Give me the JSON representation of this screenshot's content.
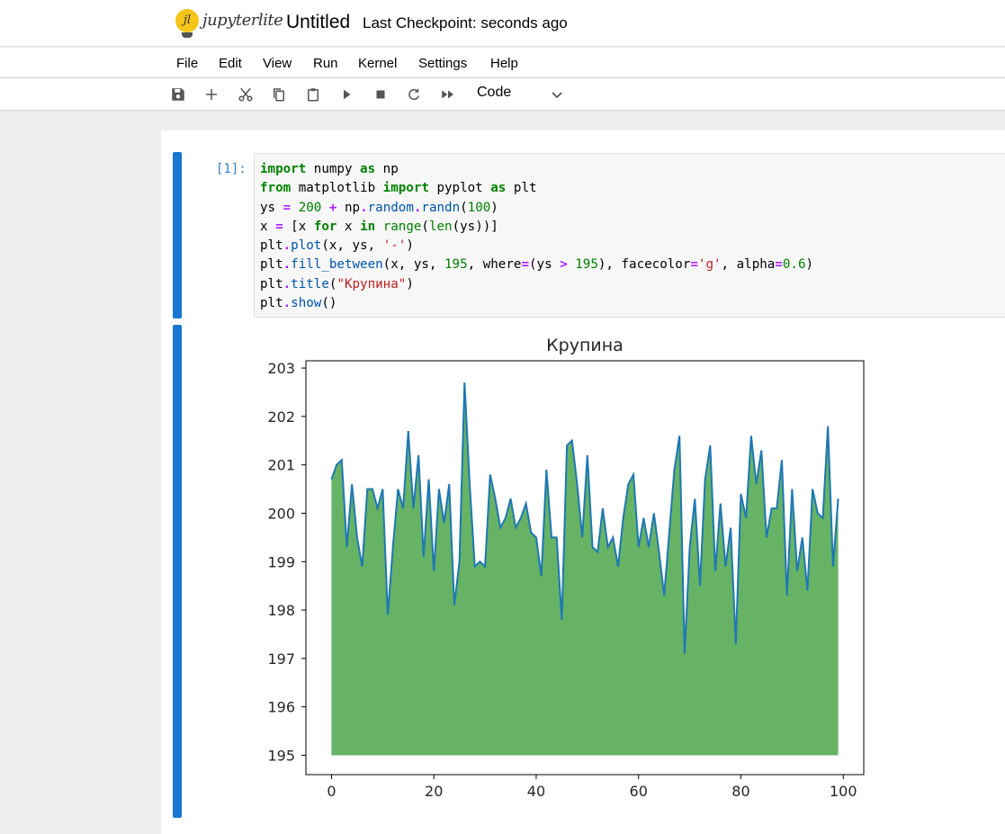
{
  "header": {
    "logo_text": "jupyterlite",
    "logo_mark": "jl",
    "title": "Untitled",
    "checkpoint": "Last Checkpoint: seconds ago"
  },
  "menu": [
    "File",
    "Edit",
    "View",
    "Run",
    "Kernel",
    "Settings",
    "Help"
  ],
  "toolbar": {
    "buttons": [
      "save-icon",
      "add-icon",
      "cut-icon",
      "copy-icon",
      "paste-icon",
      "run-icon",
      "stop-icon",
      "restart-icon",
      "run-all-icon"
    ],
    "cell_type": "Code"
  },
  "cell": {
    "prompt": "[1]:",
    "code_lines": [
      "import numpy as np",
      "from matplotlib import pyplot as plt",
      "ys = 200 + np.random.randn(100)",
      "x = [x for x in range(len(ys))]",
      "plt.plot(x, ys, '-')",
      "plt.fill_between(x, ys, 195, where=(ys > 195), facecolor='g', alpha=0.6)",
      "plt.title(\"Крупина\")",
      "plt.show()"
    ]
  },
  "chart_data": {
    "type": "area",
    "title": "Крупина",
    "xlabel": "",
    "ylabel": "",
    "xlim": [
      -5,
      104
    ],
    "ylim": [
      194.6,
      203.15
    ],
    "xticks": [
      0,
      20,
      40,
      60,
      80,
      100
    ],
    "yticks": [
      195,
      196,
      197,
      198,
      199,
      200,
      201,
      202,
      203
    ],
    "baseline": 195,
    "line_color": "#1f77b4",
    "fill_color": "#008000",
    "fill_alpha": 0.6,
    "grid": false,
    "x": [
      0,
      1,
      2,
      3,
      4,
      5,
      6,
      7,
      8,
      9,
      10,
      11,
      12,
      13,
      14,
      15,
      16,
      17,
      18,
      19,
      20,
      21,
      22,
      23,
      24,
      25,
      26,
      27,
      28,
      29,
      30,
      31,
      32,
      33,
      34,
      35,
      36,
      37,
      38,
      39,
      40,
      41,
      42,
      43,
      44,
      45,
      46,
      47,
      48,
      49,
      50,
      51,
      52,
      53,
      54,
      55,
      56,
      57,
      58,
      59,
      60,
      61,
      62,
      63,
      64,
      65,
      66,
      67,
      68,
      69,
      70,
      71,
      72,
      73,
      74,
      75,
      76,
      77,
      78,
      79,
      80,
      81,
      82,
      83,
      84,
      85,
      86,
      87,
      88,
      89,
      90,
      91,
      92,
      93,
      94,
      95,
      96,
      97,
      98,
      99
    ],
    "y": [
      200.7,
      201.0,
      201.1,
      199.3,
      200.6,
      199.5,
      198.9,
      200.5,
      200.5,
      200.1,
      200.5,
      197.9,
      199.3,
      200.5,
      200.1,
      201.7,
      200.1,
      201.2,
      199.1,
      200.7,
      198.8,
      200.5,
      199.8,
      200.6,
      198.1,
      199.0,
      202.7,
      200.6,
      198.9,
      199.0,
      198.9,
      200.8,
      200.3,
      199.7,
      199.9,
      200.3,
      199.7,
      199.9,
      200.2,
      199.6,
      199.5,
      198.7,
      200.9,
      199.5,
      199.5,
      197.8,
      201.4,
      201.5,
      200.6,
      199.5,
      201.2,
      199.3,
      199.2,
      200.1,
      199.3,
      199.5,
      198.9,
      199.9,
      200.6,
      200.8,
      199.3,
      199.9,
      199.3,
      200.0,
      199.2,
      198.3,
      199.6,
      200.9,
      201.6,
      197.1,
      199.3,
      200.3,
      198.5,
      200.7,
      201.4,
      198.8,
      200.2,
      198.9,
      199.7,
      197.3,
      200.4,
      199.9,
      201.6,
      200.6,
      201.3,
      199.5,
      200.1,
      200.1,
      201.1,
      198.3,
      200.5,
      198.8,
      199.5,
      198.4,
      200.5,
      200.0,
      199.9,
      201.8,
      198.9,
      200.3
    ]
  }
}
